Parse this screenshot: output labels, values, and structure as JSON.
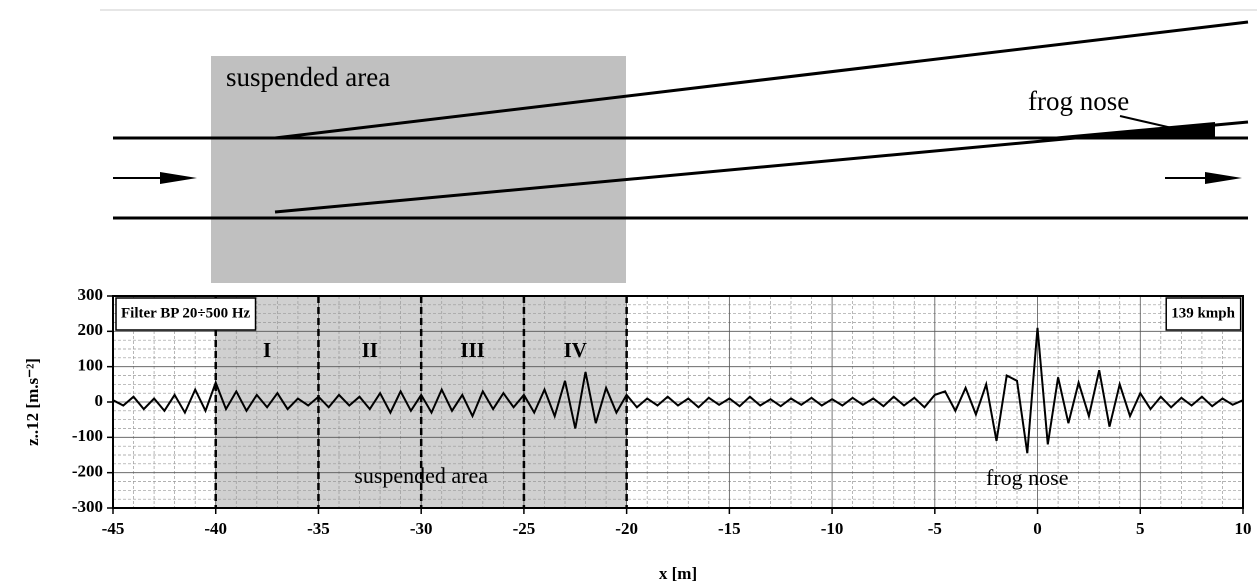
{
  "diagram": {
    "left_label": "suspended area",
    "right_label": "frog nose"
  },
  "chart_data": {
    "type": "line",
    "xlabel": "x [m]",
    "ylabel": "z..12 [m.s⁻²]",
    "filter_note": "Filter BP 20÷500 Hz",
    "speed_note": "139 kmph",
    "region_label": "suspended area",
    "feature_label": "frog nose",
    "shaded_region": [
      -40,
      -20
    ],
    "zone_bounds": [
      -40,
      -35,
      -30,
      -25,
      -20
    ],
    "zone_labels": [
      "I",
      "II",
      "III",
      "IV"
    ],
    "color": "#000000",
    "xlim": [
      -45,
      10
    ],
    "ylim": [
      -300,
      300
    ],
    "xticks": [
      -45,
      -40,
      -35,
      -30,
      -25,
      -20,
      -15,
      -10,
      -5,
      0,
      5,
      10
    ],
    "yticks": [
      -300,
      -200,
      -100,
      0,
      100,
      200,
      300
    ],
    "grid": true,
    "minor_grid": true,
    "x": [
      -45,
      -44.5,
      -44,
      -43.5,
      -43,
      -42.5,
      -42,
      -41.5,
      -41,
      -40.5,
      -40,
      -39.5,
      -39,
      -38.5,
      -38,
      -37.5,
      -37,
      -36.5,
      -36,
      -35.5,
      -35,
      -34.5,
      -34,
      -33.5,
      -33,
      -32.5,
      -32,
      -31.5,
      -31,
      -30.5,
      -30,
      -29.5,
      -29,
      -28.5,
      -28,
      -27.5,
      -27,
      -26.5,
      -26,
      -25.5,
      -25,
      -24.5,
      -24,
      -23.5,
      -23,
      -22.5,
      -22,
      -21.5,
      -21,
      -20.5,
      -20,
      -19.5,
      -19,
      -18.5,
      -18,
      -17.5,
      -17,
      -16.5,
      -16,
      -15.5,
      -15,
      -14.5,
      -14,
      -13.5,
      -13,
      -12.5,
      -12,
      -11.5,
      -11,
      -10.5,
      -10,
      -9.5,
      -9,
      -8.5,
      -8,
      -7.5,
      -7,
      -6.5,
      -6,
      -5.5,
      -5,
      -4.5,
      -4,
      -3.5,
      -3,
      -2.5,
      -2,
      -1.5,
      -1,
      -0.5,
      0,
      0.5,
      1,
      1.5,
      2,
      2.5,
      3,
      3.5,
      4,
      4.5,
      5,
      5.5,
      6,
      6.5,
      7,
      7.5,
      8,
      8.5,
      9,
      9.5,
      10
    ],
    "values": [
      5,
      -10,
      15,
      -20,
      10,
      -25,
      20,
      -30,
      35,
      -25,
      55,
      -20,
      30,
      -25,
      20,
      -15,
      25,
      -20,
      10,
      -10,
      15,
      -15,
      20,
      -10,
      15,
      -20,
      25,
      -30,
      30,
      -25,
      20,
      -30,
      35,
      -25,
      20,
      -40,
      30,
      -20,
      25,
      -15,
      20,
      -30,
      35,
      -40,
      60,
      -75,
      85,
      -60,
      40,
      -30,
      20,
      -15,
      10,
      -10,
      15,
      -10,
      10,
      -15,
      12,
      -8,
      10,
      -12,
      15,
      -10,
      8,
      -12,
      10,
      -8,
      12,
      -10,
      8,
      -10,
      12,
      -8,
      10,
      -12,
      15,
      -10,
      12,
      -15,
      20,
      30,
      -25,
      40,
      -35,
      50,
      -110,
      75,
      60,
      -145,
      210,
      -120,
      70,
      -60,
      55,
      -40,
      90,
      -70,
      50,
      -40,
      25,
      -20,
      15,
      -15,
      12,
      -10,
      15,
      -12,
      10,
      -8,
      5
    ]
  }
}
